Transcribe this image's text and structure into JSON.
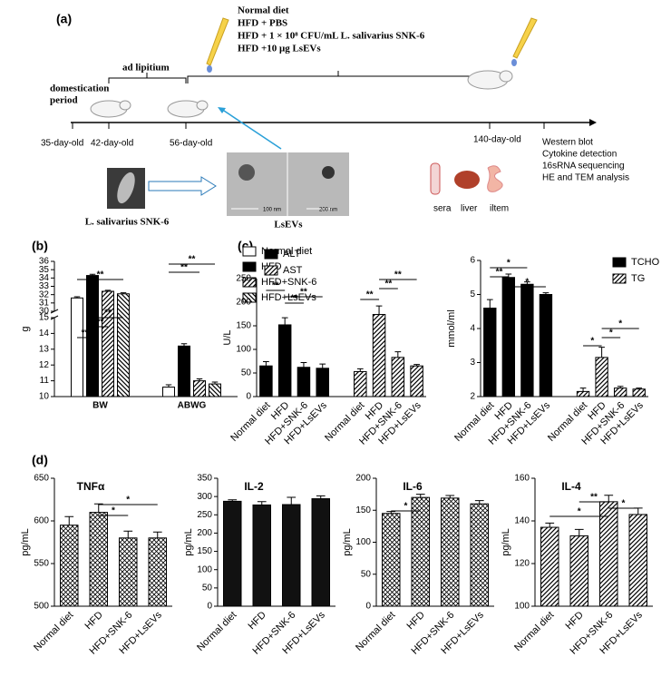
{
  "panel_labels": [
    "(a)",
    "(b)",
    "(c)",
    "(d)"
  ],
  "diagram": {
    "treatments": [
      "Normal diet",
      "HFD + PBS",
      "HFD + 1 × 10⁸ CFU/mL L. salivarius SNK-6",
      "HFD +10 μg LsEVs"
    ],
    "phases": [
      "domestication",
      "period",
      "ad lipitium"
    ],
    "ages": [
      "35-day-old",
      "42-day-old",
      "56-day-old",
      "140-day-old"
    ],
    "analyses": [
      "Western blot",
      "Cytokine detection",
      "16sRNA sequencing",
      "HE and TEM analysis"
    ],
    "samples": [
      "sera",
      "liver",
      "iltem"
    ],
    "strain": "L. salivarius SNK-6",
    "vesicles": "LsEVs",
    "scale_bars": [
      "100 nm",
      "200 nm"
    ]
  },
  "chart_data": [
    {
      "type": "bar",
      "categories": [
        "BW",
        "ABWG"
      ],
      "ylabel": "g",
      "series": [
        {
          "name": "Normal diet",
          "color": "#ffffff",
          "pattern": "none",
          "values": [
            31.6,
            10.6
          ],
          "errors": [
            0.15,
            0.15
          ]
        },
        {
          "name": "HFD",
          "color": "#000000",
          "pattern": "solid",
          "values": [
            34.3,
            13.2
          ],
          "errors": [
            0.15,
            0.15
          ]
        },
        {
          "name": "HFD+SNK-6",
          "color": "#000000",
          "pattern": "hatch",
          "values": [
            32.4,
            11.0
          ],
          "errors": [
            0.12,
            0.12
          ]
        },
        {
          "name": "HFD+LsEVs",
          "color": "#000000",
          "pattern": "backhatch",
          "values": [
            32.1,
            10.8
          ],
          "errors": [
            0.12,
            0.12
          ]
        }
      ],
      "ylim": [
        10,
        36
      ],
      "axis_break": [
        15,
        30
      ],
      "yticks": [
        10,
        11,
        12,
        13,
        14,
        15,
        30,
        31,
        32,
        33,
        34,
        35,
        36
      ],
      "annotations": [
        "**",
        "**",
        "**",
        "**",
        "**",
        "**"
      ],
      "legend": "right"
    },
    {
      "type": "bar",
      "categories": [
        "Normal diet",
        "HFD",
        "HFD+SNK-6",
        "HFD+LsEVs",
        "Normal diet",
        "HFD",
        "HFD+SNK-6",
        "HFD+LsEVs"
      ],
      "ylabel": "U/L",
      "series": [
        {
          "name": "ALT",
          "color": "#000000",
          "pattern": "solid",
          "values": [
            65,
            152,
            62,
            60,
            null,
            null,
            null,
            null
          ],
          "errors": [
            9,
            15,
            10,
            9,
            null,
            null,
            null,
            null
          ]
        },
        {
          "name": "AST",
          "color": "#000000",
          "pattern": "hatch",
          "values": [
            null,
            null,
            null,
            null,
            53,
            174,
            83,
            65
          ],
          "errors": [
            null,
            null,
            null,
            null,
            6,
            18,
            12,
            3
          ]
        }
      ],
      "ylim": [
        0,
        250
      ],
      "yticks": [
        0,
        50,
        100,
        150,
        200,
        250
      ],
      "annotations": [
        "**",
        "**",
        "**",
        "**",
        "**",
        "**"
      ],
      "legend": "upper left"
    },
    {
      "type": "bar",
      "categories": [
        "Normal diet",
        "HFD",
        "HFD+SNK-6",
        "HFD+LsEVs",
        "Normal diet",
        "HFD",
        "HFD+SNK-6",
        "HFD+LsEVs"
      ],
      "ylabel": "mmol/ml",
      "series": [
        {
          "name": "TCHO",
          "color": "#000000",
          "pattern": "solid",
          "values": [
            4.6,
            5.5,
            5.3,
            5.0,
            null,
            null,
            null,
            null
          ],
          "errors": [
            0.25,
            0.1,
            0.07,
            0.05,
            null,
            null,
            null,
            null
          ]
        },
        {
          "name": "TG",
          "color": "#000000",
          "pattern": "hatch",
          "values": [
            null,
            null,
            null,
            null,
            2.15,
            3.15,
            2.25,
            2.22
          ],
          "errors": [
            null,
            null,
            null,
            null,
            0.1,
            0.3,
            0.05,
            0.03
          ]
        }
      ],
      "ylim": [
        2,
        6
      ],
      "yticks": [
        2,
        3,
        4,
        5,
        6
      ],
      "annotations": [
        "*",
        "**",
        "*",
        "*",
        "*",
        "*"
      ],
      "legend": "upper right"
    },
    {
      "type": "bar",
      "title": "TNFα",
      "ylabel": "pg/mL",
      "categories": [
        "Normal diet",
        "HFD",
        "HFD+SNK-6",
        "HFD+LsEVs"
      ],
      "values": [
        595,
        610,
        580,
        580
      ],
      "errors": [
        10,
        10,
        8,
        7
      ],
      "color": "#000000",
      "pattern": "crosshatch",
      "ylim": [
        500,
        650
      ],
      "yticks": [
        500,
        550,
        600,
        650
      ],
      "annotations": [
        "*",
        "*"
      ]
    },
    {
      "type": "bar",
      "title": "IL-2",
      "ylabel": "pg/mL",
      "categories": [
        "Normal diet",
        "HFD",
        "HFD+SNK-6",
        "HFD+LsEVs"
      ],
      "values": [
        287,
        277,
        278,
        294
      ],
      "errors": [
        4,
        9,
        20,
        8
      ],
      "color": "#111111",
      "pattern": "solid",
      "ylim": [
        0,
        350
      ],
      "yticks": [
        0,
        50,
        100,
        150,
        200,
        250,
        300,
        350
      ],
      "annotations": []
    },
    {
      "type": "bar",
      "title": "IL-6",
      "ylabel": "pg/mL",
      "categories": [
        "Normal diet",
        "HFD",
        "HFD+SNK-6",
        "HFD+LsEVs"
      ],
      "values": [
        145,
        170,
        169,
        160
      ],
      "errors": [
        3,
        5,
        4,
        5
      ],
      "color": "#000000",
      "pattern": "crosshatch",
      "ylim": [
        0,
        200
      ],
      "yticks": [
        0,
        50,
        100,
        150,
        200
      ],
      "annotations": [
        "*"
      ]
    },
    {
      "type": "bar",
      "title": "IL-4",
      "ylabel": "pg/mL",
      "categories": [
        "Normal diet",
        "HFD",
        "HFD+SNK-6",
        "HFD+LsEVs"
      ],
      "values": [
        137,
        133,
        149,
        143
      ],
      "errors": [
        2,
        3,
        3,
        3
      ],
      "color": "#000000",
      "pattern": "hatch",
      "ylim": [
        100,
        160
      ],
      "yticks": [
        100,
        120,
        140,
        160
      ],
      "annotations": [
        "*",
        "**",
        "*"
      ]
    }
  ]
}
